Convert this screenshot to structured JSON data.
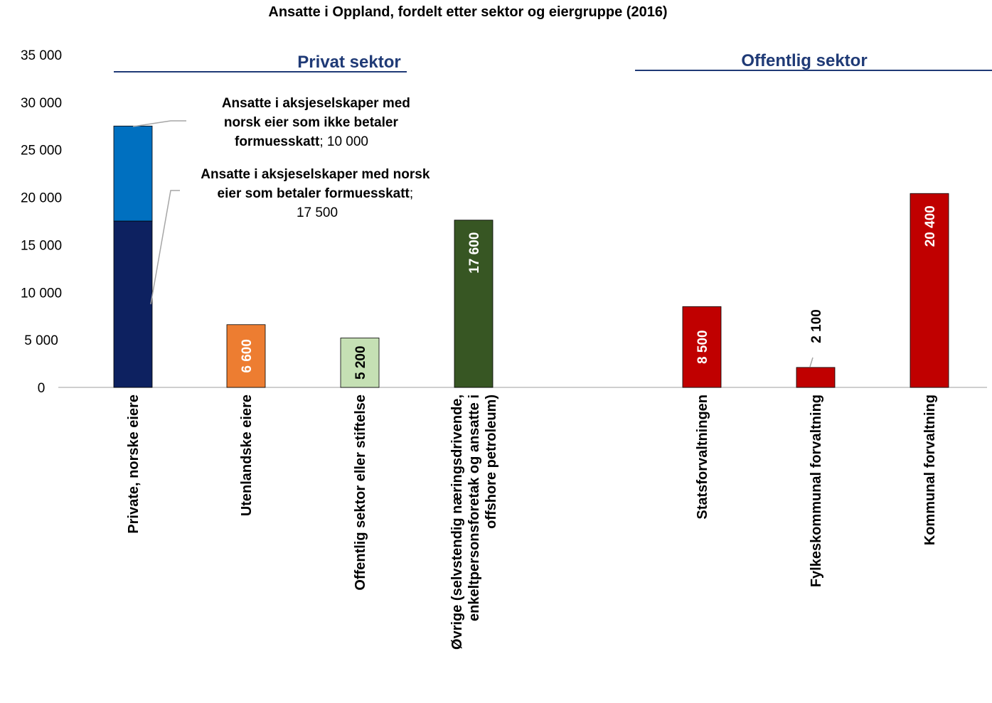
{
  "chart_data": {
    "type": "bar",
    "title": "Ansatte i Oppland, fordelt etter sektor og eiergruppe (2016)",
    "ylim": [
      0,
      35000
    ],
    "yticks": [
      "0",
      "5 000",
      "10 000",
      "15 000",
      "20 000",
      "25 000",
      "30 000",
      "35 000"
    ],
    "grid": false,
    "sector_labels": [
      "Privat sektor",
      "Offentlig sektor"
    ],
    "categories": [
      [
        "Private, norske eiere"
      ],
      [
        "Utenlandske eiere"
      ],
      [
        "Offentlig sektor eller stiftelse"
      ],
      [
        "Øvrige (selvstendig næringsdrivende,",
        "enkeltpersonsforetak og ansatte i",
        "offshore petroleum)"
      ],
      [
        "Statsforvaltningen"
      ],
      [
        "Fylkeskommunal forvaltning"
      ],
      [
        "Kommunal forvaltning"
      ]
    ],
    "series": [
      {
        "values": [
          17500,
          6600,
          5200,
          17600,
          8500,
          2100,
          20400
        ],
        "colors": [
          "#0d2160",
          "#ed7d31",
          "#c5e0b4",
          "#375623",
          "#c00000",
          "#c00000",
          "#c00000"
        ],
        "data_labels": [
          "",
          "6 600",
          "5 200",
          "17 600",
          "8 500",
          "2 100",
          "20 400"
        ]
      },
      {
        "values": [
          10000,
          0,
          0,
          0,
          0,
          0,
          0
        ],
        "colors": [
          "#0070c0",
          "",
          "",
          "",
          "",
          "",
          ""
        ]
      }
    ],
    "annotations": [
      {
        "bold_lines": [
          "Ansatte i aksjeselskaper med",
          "norsk eier som ikke betaler",
          "formuesskatt"
        ],
        "value": "; 10 000"
      },
      {
        "bold_lines": [
          "Ansatte i aksjeselskaper med norsk",
          "eier som betaler formuesskatt"
        ],
        "value": "17 500"
      }
    ]
  }
}
